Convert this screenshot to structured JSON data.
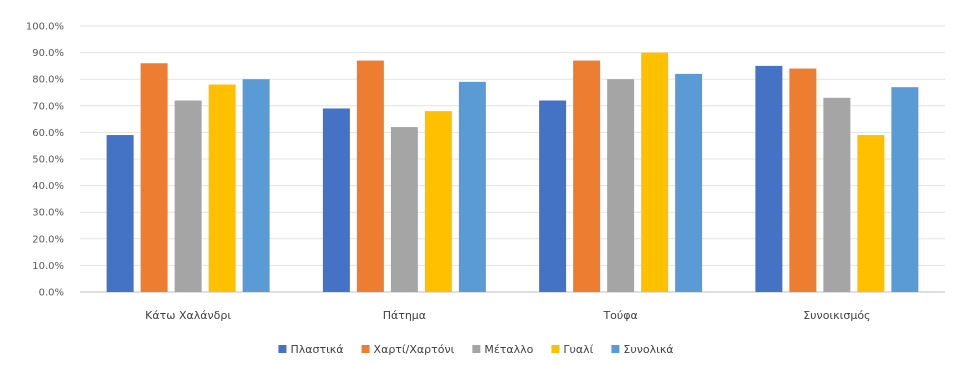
{
  "chart_data": {
    "type": "bar",
    "title": "",
    "xlabel": "",
    "ylabel": "",
    "ylim": [
      0,
      100
    ],
    "yticks": [
      "0.0%",
      "10.0%",
      "20.0%",
      "30.0%",
      "40.0%",
      "50.0%",
      "60.0%",
      "70.0%",
      "80.0%",
      "90.0%",
      "100.0%"
    ],
    "categories": [
      "Κάτω Χαλάνδρι",
      "Πάτημα",
      "Τούφα",
      "Συνοικισμός"
    ],
    "series": [
      {
        "name": "Πλαστικά",
        "color": "#4472c4",
        "values": [
          59,
          69,
          72,
          85
        ]
      },
      {
        "name": "Χαρτί/Χαρτόνι",
        "color": "#ed7d31",
        "values": [
          86,
          87,
          87,
          84
        ]
      },
      {
        "name": "Μέταλλο",
        "color": "#a5a5a5",
        "values": [
          72,
          62,
          80,
          73
        ]
      },
      {
        "name": "Γυαλί",
        "color": "#ffc000",
        "values": [
          78,
          68,
          90,
          59
        ]
      },
      {
        "name": "Συνολικά",
        "color": "#5b9bd5",
        "values": [
          80,
          79,
          82,
          77
        ]
      }
    ],
    "grid": true,
    "legend_position": "bottom"
  }
}
